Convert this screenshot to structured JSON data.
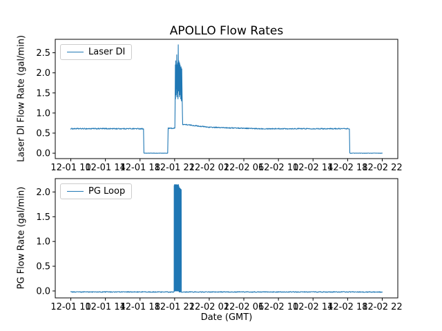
{
  "figure": {
    "background": "#ffffff",
    "accent_color": "#1f77b4"
  },
  "chart_data": [
    {
      "type": "line",
      "title": "APOLLO Flow Rates",
      "ylabel": "Laser DI Flow Rate (gal/min)",
      "xlabel": "",
      "legend_position": "upper left",
      "color": "#1f77b4",
      "x_unit": "hours since 12-01 10:00 GMT",
      "xlim": [
        -1.8,
        37.8
      ],
      "ylim": [
        -0.135,
        2.835
      ],
      "grid": false,
      "x_ticks": [
        {
          "value": 0,
          "label": "12-01 10"
        },
        {
          "value": 4,
          "label": "12-01 14"
        },
        {
          "value": 8,
          "label": "12-01 18"
        },
        {
          "value": 12,
          "label": "12-01 22"
        },
        {
          "value": 16,
          "label": "12-02 02"
        },
        {
          "value": 20,
          "label": "12-02 06"
        },
        {
          "value": 24,
          "label": "12-02 10"
        },
        {
          "value": 28,
          "label": "12-02 14"
        },
        {
          "value": 32,
          "label": "12-02 18"
        },
        {
          "value": 36,
          "label": "12-02 22"
        }
      ],
      "y_ticks": [
        0.0,
        0.5,
        1.0,
        1.5,
        2.0,
        2.5
      ],
      "series": [
        {
          "name": "Laser DI",
          "segments": [
            {
              "kind": "flat",
              "x0": 0.0,
              "x1": 8.4,
              "y": 0.61,
              "noise": 0.013
            },
            {
              "kind": "flat",
              "x0": 8.45,
              "x1": 11.2,
              "y": 0.0,
              "noise": 0.004
            },
            {
              "kind": "flat",
              "x0": 11.25,
              "x1": 12.03,
              "y": 0.62,
              "noise": 0.013
            },
            {
              "kind": "points",
              "points": [
                [
                  12.05,
                  1.1
                ],
                [
                  12.08,
                  2.2
                ],
                [
                  12.1,
                  1.35
                ],
                [
                  12.13,
                  2.3
                ],
                [
                  12.16,
                  1.45
                ],
                [
                  12.18,
                  2.2
                ],
                [
                  12.21,
                  1.6
                ],
                [
                  12.24,
                  2.45
                ],
                [
                  12.27,
                  1.4
                ],
                [
                  12.3,
                  2.2
                ],
                [
                  12.33,
                  1.5
                ],
                [
                  12.36,
                  2.25
                ],
                [
                  12.39,
                  1.35
                ],
                [
                  12.42,
                  2.7
                ],
                [
                  12.45,
                  1.55
                ],
                [
                  12.48,
                  2.3
                ],
                [
                  12.51,
                  2.2
                ],
                [
                  12.54,
                  1.4
                ],
                [
                  12.57,
                  2.25
                ],
                [
                  12.6,
                  1.45
                ],
                [
                  12.63,
                  2.2
                ],
                [
                  12.67,
                  2.1
                ],
                [
                  12.71,
                  1.35
                ],
                [
                  12.75,
                  2.15
                ],
                [
                  12.79,
                  1.3
                ],
                [
                  12.83,
                  2.1
                ],
                [
                  12.87,
                  1.45
                ],
                [
                  12.91,
                  0.95
                ]
              ]
            },
            {
              "kind": "ramp",
              "x0": 12.93,
              "x1": 16.0,
              "y0": 0.72,
              "y1": 0.645,
              "noise": 0.012
            },
            {
              "kind": "ramp",
              "x0": 16.0,
              "x1": 21.0,
              "y0": 0.645,
              "y1": 0.615,
              "noise": 0.012
            },
            {
              "kind": "flat",
              "x0": 21.0,
              "x1": 32.2,
              "y": 0.61,
              "noise": 0.012
            },
            {
              "kind": "flat",
              "x0": 32.25,
              "x1": 36.0,
              "y": 0.0,
              "noise": 0.004
            }
          ]
        }
      ]
    },
    {
      "type": "line",
      "title": "",
      "ylabel": "PG Flow Rate (gal/min)",
      "xlabel": "Date (GMT)",
      "legend_position": "upper left",
      "color": "#1f77b4",
      "x_unit": "hours since 12-01 10:00 GMT",
      "xlim": [
        -1.8,
        37.8
      ],
      "ylim": [
        -0.14,
        2.27
      ],
      "grid": false,
      "x_ticks": [
        {
          "value": 0,
          "label": "12-01 10"
        },
        {
          "value": 4,
          "label": "12-01 14"
        },
        {
          "value": 8,
          "label": "12-01 18"
        },
        {
          "value": 12,
          "label": "12-01 22"
        },
        {
          "value": 16,
          "label": "12-02 02"
        },
        {
          "value": 20,
          "label": "12-02 06"
        },
        {
          "value": 24,
          "label": "12-02 10"
        },
        {
          "value": 28,
          "label": "12-02 14"
        },
        {
          "value": 32,
          "label": "12-02 18"
        },
        {
          "value": 36,
          "label": "12-02 22"
        }
      ],
      "y_ticks": [
        0.0,
        0.5,
        1.0,
        1.5,
        2.0
      ],
      "series": [
        {
          "name": "PG Loop",
          "segments": [
            {
              "kind": "flat",
              "x0": 0.0,
              "x1": 11.94,
              "y": -0.02,
              "noise": 0.008
            },
            {
              "kind": "points",
              "points": [
                [
                  11.95,
                  2.13
                ],
                [
                  11.97,
                  0.0
                ],
                [
                  11.99,
                  2.15
                ],
                [
                  12.02,
                  2.12
                ],
                [
                  12.04,
                  0.0
                ],
                [
                  12.06,
                  2.14
                ],
                [
                  12.09,
                  2.12
                ],
                [
                  12.11,
                  0.0
                ],
                [
                  12.13,
                  2.15
                ],
                [
                  12.16,
                  2.13
                ],
                [
                  12.18,
                  0.0
                ],
                [
                  12.2,
                  2.14
                ],
                [
                  12.23,
                  2.12
                ],
                [
                  12.25,
                  0.0
                ],
                [
                  12.27,
                  2.15
                ],
                [
                  12.3,
                  2.13
                ],
                [
                  12.32,
                  0.0
                ],
                [
                  12.34,
                  2.12
                ],
                [
                  12.37,
                  2.14
                ],
                [
                  12.39,
                  0.0
                ],
                [
                  12.41,
                  2.13
                ],
                [
                  12.44,
                  2.15
                ],
                [
                  12.46,
                  0.0
                ],
                [
                  12.48,
                  2.12
                ],
                [
                  12.5,
                  2.1
                ],
                [
                  12.52,
                  -0.02
                ],
                [
                  12.56,
                  -0.02
                ],
                [
                  12.58,
                  2.08
                ],
                [
                  12.62,
                  2.07
                ],
                [
                  12.64,
                  -0.02
                ],
                [
                  12.68,
                  -0.02
                ],
                [
                  12.7,
                  2.06
                ],
                [
                  12.74,
                  2.05
                ],
                [
                  12.76,
                  2.04
                ],
                [
                  12.78,
                  -0.02
                ]
              ]
            },
            {
              "kind": "flat",
              "x0": 12.79,
              "x1": 36.0,
              "y": -0.02,
              "noise": 0.008
            }
          ]
        }
      ]
    }
  ]
}
